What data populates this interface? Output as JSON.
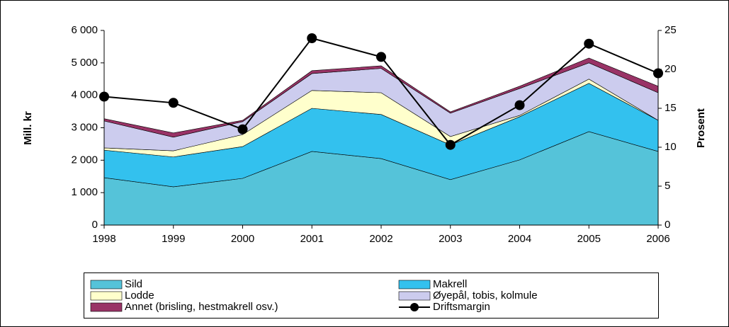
{
  "chart_data": {
    "type": "stacked_area",
    "y_label": "Mill. kr",
    "y2_label": "Prosent",
    "categories": [
      "1998",
      "1999",
      "2000",
      "2001",
      "2002",
      "2003",
      "2004",
      "2005",
      "2006"
    ],
    "series": [
      {
        "name": "Sild",
        "color": "#55c3d9",
        "values": [
          1460,
          1180,
          1440,
          2270,
          2050,
          1400,
          2010,
          2880,
          2270
        ]
      },
      {
        "name": "Makrell",
        "color": "#33c1ee",
        "values": [
          850,
          920,
          980,
          1330,
          1360,
          1070,
          1330,
          1490,
          960
        ]
      },
      {
        "name": "Lodde",
        "color": "#ffffcc",
        "values": [
          70,
          190,
          370,
          550,
          670,
          260,
          40,
          130,
          0
        ]
      },
      {
        "name": "Øyepål, tobis, kolmule",
        "color": "#ccccee",
        "values": [
          830,
          420,
          400,
          520,
          750,
          720,
          830,
          500,
          850
        ]
      },
      {
        "name": "Annet (brisling, hestmakrell osv.)",
        "color": "#993366",
        "values": [
          70,
          130,
          40,
          90,
          80,
          40,
          70,
          150,
          200
        ]
      },
      {
        "name": "Driftsmargin",
        "color": "#000000",
        "type": "line",
        "axis": "y2",
        "values": [
          16.5,
          15.7,
          12.3,
          24,
          21.6,
          10.3,
          15.4,
          23.3,
          19.5
        ]
      }
    ],
    "ylim": [
      0,
      6000
    ],
    "yticks": [
      0,
      {
        "value": 1000,
        "label": "1 000"
      },
      {
        "value": 2000,
        "label": "2 000"
      },
      {
        "value": 3000,
        "label": "3 000"
      },
      {
        "value": 4000,
        "label": "4 000"
      },
      {
        "value": 5000,
        "label": "5 000"
      },
      {
        "value": 6000,
        "label": "6 000"
      }
    ],
    "y2lim": [
      0,
      25
    ],
    "y2ticks": [
      0,
      5,
      10,
      15,
      20,
      25
    ],
    "legend": "bottom"
  }
}
